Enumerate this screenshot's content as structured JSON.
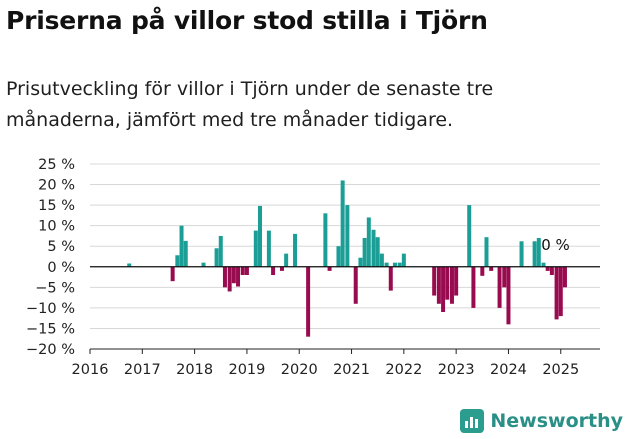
{
  "header": {
    "title": "Priserna på villor stod stilla i Tjörn",
    "subtitle": "Prisutveckling för villor i Tjörn under de senaste tre månaderna, jämfört med tre månader tidigare."
  },
  "brand": {
    "name": "Newsworthy",
    "icon": "bar-chart-icon"
  },
  "chart_data": {
    "type": "bar",
    "xlabel": "",
    "ylabel": "",
    "ylim": [
      -20,
      25
    ],
    "xlim": [
      2016,
      2025.75
    ],
    "y_ticks": [
      25,
      20,
      15,
      10,
      5,
      0,
      -5,
      -10,
      -15,
      -20
    ],
    "y_tick_labels": [
      "25 %",
      "20 %",
      "15 %",
      "10 %",
      "5 %",
      "0 %",
      "−5 %",
      "−10 %",
      "−15 %",
      "−20 %"
    ],
    "x_ticks": [
      2016,
      2017,
      2018,
      2019,
      2020,
      2021,
      2022,
      2023,
      2024,
      2025
    ],
    "x_tick_labels": [
      "2016",
      "2017",
      "2018",
      "2019",
      "2020",
      "2021",
      "2022",
      "2023",
      "2024",
      "2025"
    ],
    "grid": true,
    "colors": {
      "positive": "#1a9e96",
      "negative": "#990b4f",
      "zero_line": "#111111",
      "grid": "#d8d8d8"
    },
    "annotations": [
      {
        "text": "0 %",
        "x": 2024.9,
        "y": 0
      }
    ],
    "points": [
      {
        "x": 2016.75,
        "y": 0.8
      },
      {
        "x": 2017.58,
        "y": -3.5
      },
      {
        "x": 2017.67,
        "y": 2.8
      },
      {
        "x": 2017.75,
        "y": 10.0
      },
      {
        "x": 2017.83,
        "y": 6.3
      },
      {
        "x": 2018.17,
        "y": 1.0
      },
      {
        "x": 2018.42,
        "y": 4.5
      },
      {
        "x": 2018.5,
        "y": 7.5
      },
      {
        "x": 2018.58,
        "y": -5.0
      },
      {
        "x": 2018.67,
        "y": -6.0
      },
      {
        "x": 2018.75,
        "y": -4.0
      },
      {
        "x": 2018.83,
        "y": -4.8
      },
      {
        "x": 2018.92,
        "y": -2.0
      },
      {
        "x": 2019.0,
        "y": -2.0
      },
      {
        "x": 2019.17,
        "y": 8.8
      },
      {
        "x": 2019.25,
        "y": 14.8
      },
      {
        "x": 2019.42,
        "y": 8.8
      },
      {
        "x": 2019.5,
        "y": -2.0
      },
      {
        "x": 2019.67,
        "y": -1.0
      },
      {
        "x": 2019.75,
        "y": 3.2
      },
      {
        "x": 2019.92,
        "y": 8.0
      },
      {
        "x": 2020.17,
        "y": -17.0
      },
      {
        "x": 2020.5,
        "y": 13.0
      },
      {
        "x": 2020.58,
        "y": -1.0
      },
      {
        "x": 2020.75,
        "y": 5.0
      },
      {
        "x": 2020.83,
        "y": 21.0
      },
      {
        "x": 2020.92,
        "y": 15.0
      },
      {
        "x": 2021.08,
        "y": -9.0
      },
      {
        "x": 2021.17,
        "y": 2.2
      },
      {
        "x": 2021.25,
        "y": 7.0
      },
      {
        "x": 2021.33,
        "y": 12.0
      },
      {
        "x": 2021.42,
        "y": 9.0
      },
      {
        "x": 2021.5,
        "y": 7.2
      },
      {
        "x": 2021.58,
        "y": 3.2
      },
      {
        "x": 2021.67,
        "y": 1.0
      },
      {
        "x": 2021.75,
        "y": -5.8
      },
      {
        "x": 2021.83,
        "y": 1.0
      },
      {
        "x": 2021.92,
        "y": 1.0
      },
      {
        "x": 2022.0,
        "y": 3.2
      },
      {
        "x": 2022.58,
        "y": -7.0
      },
      {
        "x": 2022.67,
        "y": -9.0
      },
      {
        "x": 2022.75,
        "y": -11.0
      },
      {
        "x": 2022.83,
        "y": -8.0
      },
      {
        "x": 2022.92,
        "y": -9.0
      },
      {
        "x": 2023.0,
        "y": -7.0
      },
      {
        "x": 2023.25,
        "y": 15.0
      },
      {
        "x": 2023.33,
        "y": -10.0
      },
      {
        "x": 2023.5,
        "y": -2.2
      },
      {
        "x": 2023.58,
        "y": 7.2
      },
      {
        "x": 2023.67,
        "y": -1.0
      },
      {
        "x": 2023.83,
        "y": -10.0
      },
      {
        "x": 2023.92,
        "y": -5.0
      },
      {
        "x": 2024.0,
        "y": -14.0
      },
      {
        "x": 2024.25,
        "y": 6.2
      },
      {
        "x": 2024.5,
        "y": 6.2
      },
      {
        "x": 2024.58,
        "y": 7.0
      },
      {
        "x": 2024.67,
        "y": 1.0
      },
      {
        "x": 2024.75,
        "y": -1.0
      },
      {
        "x": 2024.83,
        "y": -2.0
      },
      {
        "x": 2024.92,
        "y": -12.8
      },
      {
        "x": 2025.0,
        "y": -12.0
      },
      {
        "x": 2025.08,
        "y": -5.0
      }
    ]
  }
}
